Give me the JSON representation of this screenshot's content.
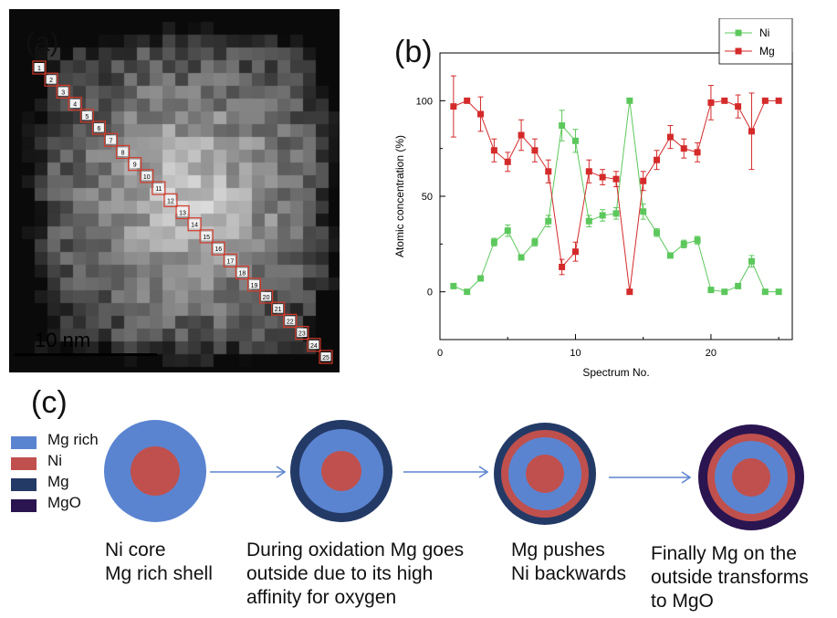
{
  "panels": {
    "a": "(a)",
    "b": "(b)",
    "c": "(c)"
  },
  "stem": {
    "scale_bar_label": "10 nm",
    "box_labels": [
      "1",
      "2",
      "3",
      "4",
      "5",
      "6",
      "7",
      "8",
      "9",
      "10",
      "11",
      "12",
      "13",
      "14",
      "15",
      "16",
      "17",
      "18",
      "19",
      "20",
      "21",
      "22",
      "23",
      "24",
      "25"
    ],
    "box_color": "#d33a2a"
  },
  "chart_data": {
    "type": "line",
    "xlabel": "Spectrum No.",
    "ylabel": "Atomic concentration (%)",
    "xlim": [
      0,
      26
    ],
    "ylim": [
      -25,
      125
    ],
    "xticks": [
      0,
      10,
      20
    ],
    "yticks": [
      0,
      50,
      100
    ],
    "x": [
      1,
      2,
      3,
      4,
      5,
      6,
      7,
      8,
      9,
      10,
      11,
      12,
      13,
      14,
      15,
      16,
      17,
      18,
      19,
      20,
      21,
      22,
      23,
      24,
      25
    ],
    "series": [
      {
        "name": "Ni",
        "color": "#5cc85c",
        "values": [
          3,
          0,
          7,
          26,
          32,
          18,
          26,
          37,
          87,
          79,
          37,
          40,
          41,
          100,
          42,
          31,
          19,
          25,
          27,
          1,
          0,
          3,
          16,
          0,
          0
        ],
        "errors": [
          0,
          0,
          1,
          2,
          3,
          1,
          2,
          3,
          8,
          6,
          3,
          3,
          3,
          0,
          4,
          2,
          1,
          2,
          2,
          0,
          0,
          0,
          3,
          0,
          0
        ]
      },
      {
        "name": "Mg",
        "color": "#d42a2a",
        "values": [
          97,
          100,
          93,
          74,
          68,
          82,
          74,
          63,
          13,
          21,
          63,
          60,
          59,
          0,
          58,
          69,
          81,
          75,
          73,
          99,
          100,
          97,
          84,
          100,
          100
        ],
        "errors": [
          16,
          0,
          9,
          6,
          5,
          8,
          6,
          6,
          4,
          5,
          6,
          4,
          4,
          0,
          5,
          5,
          6,
          5,
          5,
          9,
          0,
          6,
          20,
          0,
          0
        ]
      }
    ],
    "legend_position": "top-right",
    "grid": false
  },
  "schematic": {
    "legend": [
      {
        "label": "Mg rich",
        "color": "#5b84d0"
      },
      {
        "label": "Ni",
        "color": "#c0504d"
      },
      {
        "label": "Mg",
        "color": "#243a66"
      },
      {
        "label": "MgO",
        "color": "#2a1550"
      }
    ],
    "stages": [
      {
        "caption": "Ni core\nMg rich shell"
      },
      {
        "caption": "During oxidation Mg goes\noutside due to its high\naffinity for oxygen"
      },
      {
        "caption": "Mg pushes\nNi backwards"
      },
      {
        "caption": "Finally Mg on the\noutside transforms\nto MgO"
      }
    ],
    "arrow_color": "#5b84d0"
  }
}
